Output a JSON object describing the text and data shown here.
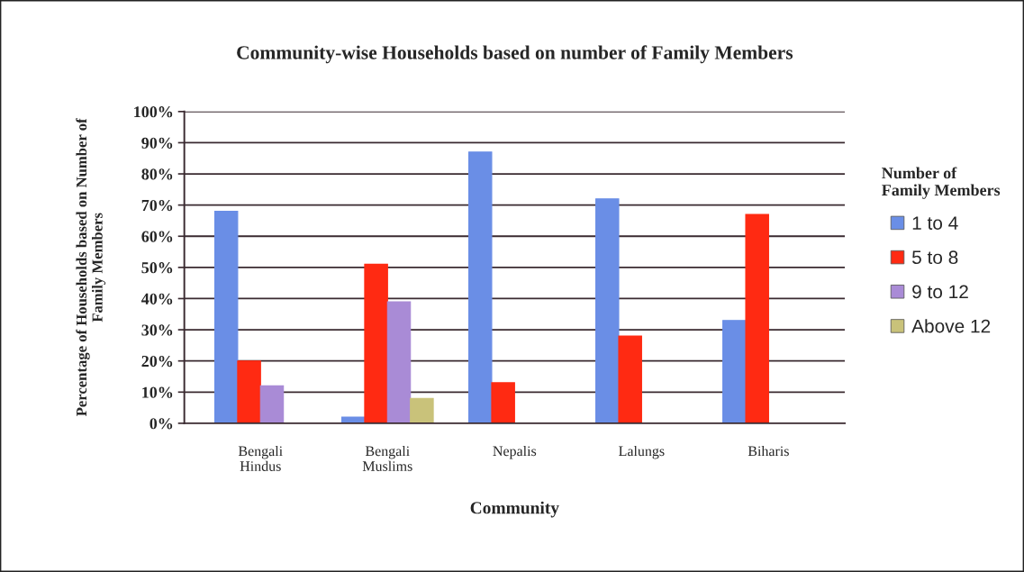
{
  "chart_data": {
    "type": "bar",
    "title": "Community-wise Households based on number of Family Members",
    "xlabel": "Community",
    "ylabel": "Percentage of Households based on Number of\nFamily Members",
    "legend_title": "Number of\nFamily Members",
    "categories": [
      "Bengali\nHindus",
      "Bengali\nMuslims",
      "Nepalis",
      "Lalungs",
      "Biharis"
    ],
    "series": [
      {
        "name": "1 to 4",
        "color": "#6a8ee6",
        "values": [
          68,
          2,
          87,
          72,
          33
        ]
      },
      {
        "name": "5 to 8",
        "color": "#ff2a12",
        "values": [
          20,
          51,
          13,
          28,
          67
        ]
      },
      {
        "name": "9 to 12",
        "color": "#a98bd6",
        "values": [
          12,
          39,
          0,
          0,
          0
        ]
      },
      {
        "name": "Above 12",
        "color": "#c9c27a",
        "values": [
          0,
          8,
          0,
          0,
          0
        ]
      }
    ],
    "ylim": [
      0,
      100
    ],
    "yticks": [
      {
        "value": 0,
        "label": "0%"
      },
      {
        "value": 10,
        "label": "10%"
      },
      {
        "value": 20,
        "label": "20%"
      },
      {
        "value": 30,
        "label": "30%"
      },
      {
        "value": 40,
        "label": "40%"
      },
      {
        "value": 50,
        "label": "50%"
      },
      {
        "value": 60,
        "label": "60%"
      },
      {
        "value": 70,
        "label": "70%"
      },
      {
        "value": 80,
        "label": "80%"
      },
      {
        "value": 90,
        "label": "90%"
      },
      {
        "value": 100,
        "label": "100%"
      }
    ],
    "grid": "y",
    "legend": "right"
  }
}
